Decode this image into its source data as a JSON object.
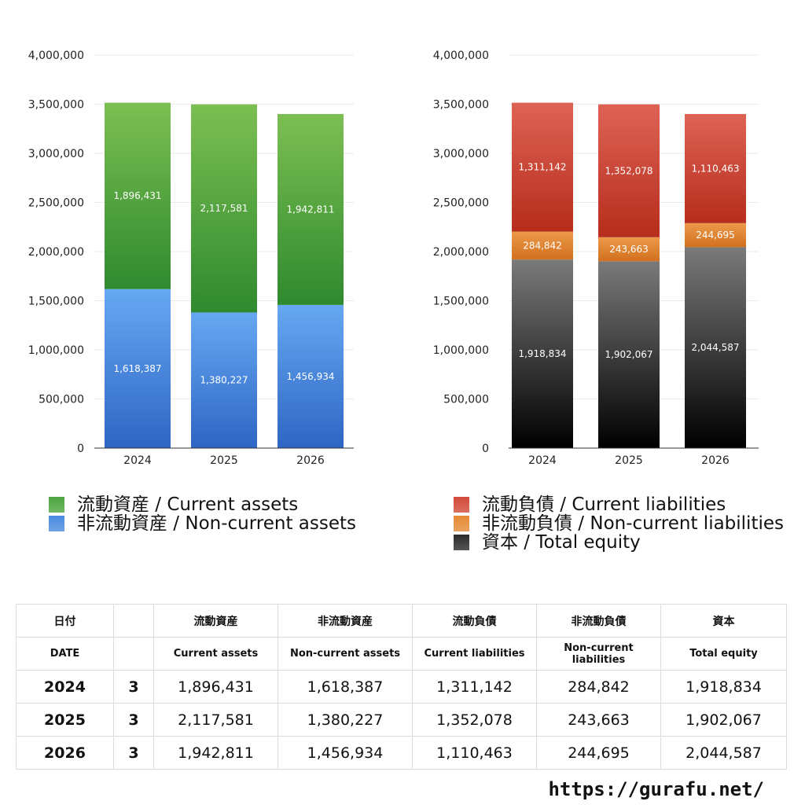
{
  "chart_data": [
    {
      "type": "bar",
      "stacked": true,
      "categories": [
        "2024",
        "2025",
        "2026"
      ],
      "ylim": [
        0,
        4000000
      ],
      "yticks": [
        "0",
        "500,000",
        "1,000,000",
        "1,500,000",
        "2,000,000",
        "2,500,000",
        "3,000,000",
        "3,500,000",
        "4,000,000"
      ],
      "grid": true,
      "legend_position": "bottom",
      "series": [
        {
          "name": "非流動資産 / Non-current assets",
          "values": [
            1618387,
            1380227,
            1456934
          ],
          "labels": [
            "1,618,387",
            "1,380,227",
            "1,456,934"
          ],
          "color_top": "#66a8f2",
          "color_bottom": "#2e66c4"
        },
        {
          "name": "流動資産 / Current assets",
          "values": [
            1896431,
            2117581,
            1942811
          ],
          "labels": [
            "1,896,431",
            "2,117,581",
            "1,942,811"
          ],
          "color_top": "#7cbf52",
          "color_bottom": "#2f8a2f"
        }
      ]
    },
    {
      "type": "bar",
      "stacked": true,
      "categories": [
        "2024",
        "2025",
        "2026"
      ],
      "ylim": [
        0,
        4000000
      ],
      "yticks": [
        "0",
        "500,000",
        "1,000,000",
        "1,500,000",
        "2,000,000",
        "2,500,000",
        "3,000,000",
        "3,500,000",
        "4,000,000"
      ],
      "grid": true,
      "legend_position": "bottom",
      "series": [
        {
          "name": "資本 / Total equity",
          "values": [
            1918834,
            1902067,
            2044587
          ],
          "labels": [
            "1,918,834",
            "1,902,067",
            "2,044,587"
          ],
          "color_top": "#7a7a7a",
          "color_bottom": "#000000"
        },
        {
          "name": "非流動負債 / Non-current liabilities",
          "values": [
            284842,
            243663,
            244695
          ],
          "labels": [
            "284,842",
            "243,663",
            "244,695"
          ],
          "color_top": "#ec9a4a",
          "color_bottom": "#d2701e"
        },
        {
          "name": "流動負債 / Current liabilities",
          "values": [
            1311142,
            1352078,
            1110463
          ],
          "labels": [
            "1,311,142",
            "1,352,078",
            "1,110,463"
          ],
          "color_top": "#de6355",
          "color_bottom": "#b62d1c"
        }
      ]
    }
  ],
  "legend_left": [
    {
      "label": "流動資産 / Current assets",
      "color": "#4ea53f"
    },
    {
      "label": "非流動資産 / Non-current assets",
      "color": "#4a8be0"
    }
  ],
  "legend_right": [
    {
      "label": "流動負債 / Current liabilities",
      "color": "#d24a3a"
    },
    {
      "label": "非流動負債 / Non-current liabilities",
      "color": "#e58a35"
    },
    {
      "label": "資本 / Total equity",
      "color": "#2b2b2b"
    }
  ],
  "table": {
    "header_jp": [
      "日付",
      "流動資産",
      "非流動資産",
      "流動負債",
      "非流動負債",
      "資本"
    ],
    "header_en": [
      "DATE",
      "Current assets",
      "Non-current assets",
      "Current liabilities",
      "Non-current liabilities",
      "Total equity"
    ],
    "rows": [
      {
        "year": "2024",
        "month": "3",
        "current_assets": "1,896,431",
        "noncurrent_assets": "1,618,387",
        "current_liabilities": "1,311,142",
        "noncurrent_liabilities": "284,842",
        "total_equity": "1,918,834"
      },
      {
        "year": "2025",
        "month": "3",
        "current_assets": "2,117,581",
        "noncurrent_assets": "1,380,227",
        "current_liabilities": "1,352,078",
        "noncurrent_liabilities": "243,663",
        "total_equity": "1,902,067"
      },
      {
        "year": "2026",
        "month": "3",
        "current_assets": "1,942,811",
        "noncurrent_assets": "1,456,934",
        "current_liabilities": "1,110,463",
        "noncurrent_liabilities": "244,695",
        "total_equity": "2,044,587"
      }
    ]
  },
  "site_url": "https://gurafu.net/"
}
